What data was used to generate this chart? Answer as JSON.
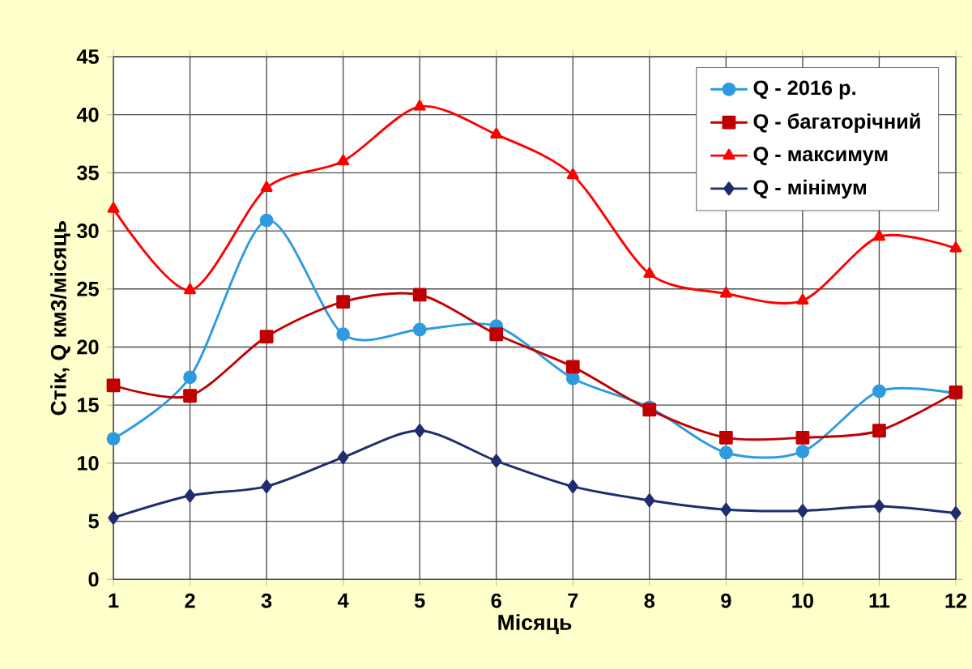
{
  "chart_data": {
    "type": "line",
    "xlabel": "Місяць",
    "ylabel": "Стік, Q км3/місяць",
    "x": [
      1,
      2,
      3,
      4,
      5,
      6,
      7,
      8,
      9,
      10,
      11,
      12
    ],
    "xlim": [
      1,
      12
    ],
    "xticks": [
      1,
      2,
      3,
      4,
      5,
      6,
      7,
      8,
      9,
      10,
      11,
      12
    ],
    "ylim": [
      0,
      45
    ],
    "yticks": [
      0,
      5,
      10,
      15,
      20,
      25,
      30,
      35,
      40,
      45
    ],
    "grid": true,
    "legend": "top right",
    "line_style": "solid",
    "series": [
      {
        "name": "Q - 2016 р.",
        "color": "#2e9be0",
        "marker": "circle",
        "values": [
          12.1,
          17.4,
          30.9,
          21.1,
          21.5,
          21.8,
          17.3,
          14.8,
          10.9,
          11.0,
          16.2,
          16.0
        ]
      },
      {
        "name": "Q - багаторічний",
        "color": "#c00000",
        "marker": "square",
        "values": [
          16.7,
          15.8,
          20.9,
          23.9,
          24.5,
          21.1,
          18.3,
          14.6,
          12.2,
          12.2,
          12.8,
          16.1
        ]
      },
      {
        "name": "Q - максимум",
        "color": "#ff0000",
        "marker": "triangle",
        "values": [
          31.9,
          24.9,
          33.7,
          36.0,
          40.7,
          38.3,
          34.8,
          26.3,
          24.6,
          24.0,
          29.5,
          28.5
        ]
      },
      {
        "name": "Q - мінімум",
        "color": "#1f2d6e",
        "marker": "diamond",
        "values": [
          5.3,
          7.2,
          8.0,
          10.5,
          12.8,
          10.2,
          8.0,
          6.8,
          6.0,
          5.9,
          6.3,
          5.7
        ]
      }
    ]
  }
}
